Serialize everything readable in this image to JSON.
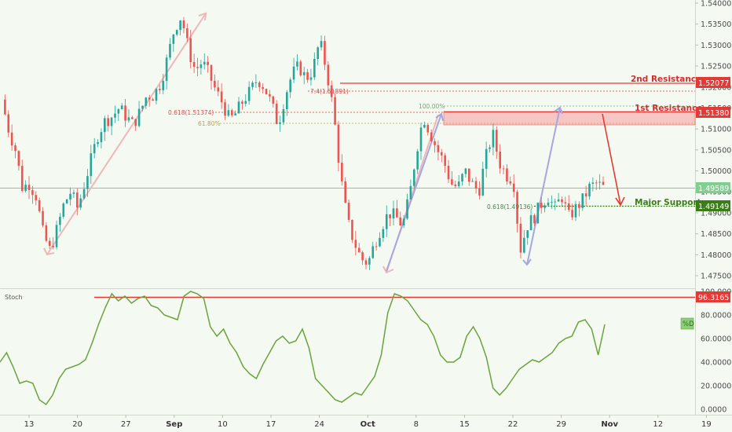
{
  "colors": {
    "background": "#f4faf2",
    "up": "#26a69a",
    "down": "#ef5350",
    "resistance": "#e53935",
    "support": "#3c7d1a",
    "stoch": "#6aa33a",
    "arrow_pink": "#f0b6b8",
    "arrow_blue": "#a7a6e0",
    "current_price": "#7fcf8e",
    "fib_gold": "#c9b36a"
  },
  "price_axis": {
    "ticks": [
      "1.54000",
      "1.53500",
      "1.53000",
      "1.52500",
      "1.52000",
      "1.51500",
      "1.51000",
      "1.50500",
      "1.50000",
      "1.49500",
      "1.49000",
      "1.48500",
      "1.48000",
      "1.47500"
    ]
  },
  "stoch_axis": {
    "ticks": [
      "100.0000",
      "80.0000",
      "60.0000",
      "40.0000",
      "20.0000",
      "0.0000"
    ]
  },
  "x_axis": {
    "ticks": [
      {
        "label": "13",
        "bold": false
      },
      {
        "label": "20",
        "bold": false
      },
      {
        "label": "27",
        "bold": false
      },
      {
        "label": "Sep",
        "bold": true
      },
      {
        "label": "10",
        "bold": false
      },
      {
        "label": "17",
        "bold": false
      },
      {
        "label": "24",
        "bold": false
      },
      {
        "label": "Oct",
        "bold": true
      },
      {
        "label": "8",
        "bold": false
      },
      {
        "label": "15",
        "bold": false
      },
      {
        "label": "22",
        "bold": false
      },
      {
        "label": "29",
        "bold": false
      },
      {
        "label": "Nov",
        "bold": true
      },
      {
        "label": "12",
        "bold": false
      },
      {
        "label": "19",
        "bold": false
      }
    ]
  },
  "levels": {
    "second_resistance": {
      "label": "2nd Resistance",
      "value": "1.52077"
    },
    "first_resistance": {
      "label": "1st Resistance",
      "value": "1.51380"
    },
    "current_price": {
      "value": "1.49589"
    },
    "major_support": {
      "label": "Major Support",
      "value": "1.49149"
    },
    "stoch_level": {
      "value": "96.3165"
    }
  },
  "fib_labels": {
    "ext_top": "7.4(1.51891)",
    "fib_0618_top": "0.618(1.51374)",
    "fib_6180": "61.80%",
    "fib_100": "100.00%",
    "fib_0618_bottom": "0.618(1.49136)"
  },
  "stoch_panel": {
    "title": "Stoch",
    "d_badge": "%D"
  },
  "chart_data": [
    {
      "type": "candlestick",
      "instrument_note": "",
      "x": [
        "Aug 13",
        "Aug 20",
        "Aug 27",
        "Sep 3",
        "Sep 10",
        "Sep 17",
        "Sep 24",
        "Oct 1",
        "Oct 8",
        "Oct 15",
        "Oct 22",
        "Oct 29",
        "Nov 5",
        "Nov 12",
        "Nov 19"
      ],
      "ylim": [
        1.473,
        1.541
      ],
      "approx_path": [
        [
          0,
          1.517
        ],
        [
          1,
          1.51
        ],
        [
          2,
          1.505
        ],
        [
          3,
          1.496
        ],
        [
          4,
          1.497
        ],
        [
          5,
          1.494
        ],
        [
          6,
          1.485
        ],
        [
          7,
          1.481
        ],
        [
          8,
          1.486
        ],
        [
          9,
          1.492
        ],
        [
          10,
          1.495
        ],
        [
          11,
          1.491
        ],
        [
          12,
          1.497
        ],
        [
          13,
          1.503
        ],
        [
          14,
          1.509
        ],
        [
          15,
          1.512
        ],
        [
          16,
          1.513
        ],
        [
          17,
          1.515
        ],
        [
          18,
          1.513
        ],
        [
          19,
          1.511
        ],
        [
          20,
          1.514
        ],
        [
          21,
          1.518
        ],
        [
          22,
          1.518
        ],
        [
          23,
          1.521
        ],
        [
          24,
          1.527
        ],
        [
          25,
          1.534
        ],
        [
          26,
          1.537
        ],
        [
          27,
          1.529
        ],
        [
          28,
          1.524
        ],
        [
          29,
          1.526
        ],
        [
          30,
          1.523
        ],
        [
          31,
          1.519
        ],
        [
          32,
          1.516
        ],
        [
          33,
          1.512
        ],
        [
          34,
          1.514
        ],
        [
          35,
          1.517
        ],
        [
          36,
          1.519
        ],
        [
          37,
          1.522
        ],
        [
          38,
          1.52
        ],
        [
          39,
          1.516
        ],
        [
          40,
          1.511
        ],
        [
          41,
          1.518
        ],
        [
          42,
          1.523
        ],
        [
          43,
          1.525
        ],
        [
          44,
          1.522
        ],
        [
          45,
          1.524
        ],
        [
          46,
          1.531
        ],
        [
          47,
          1.524
        ],
        [
          48,
          1.514
        ],
        [
          49,
          1.499
        ],
        [
          50,
          1.488
        ],
        [
          51,
          1.483
        ],
        [
          52,
          1.479
        ],
        [
          53,
          1.478
        ],
        [
          54,
          1.483
        ],
        [
          55,
          1.487
        ],
        [
          56,
          1.49
        ],
        [
          57,
          1.489
        ],
        [
          58,
          1.487
        ],
        [
          59,
          1.494
        ],
        [
          60,
          1.505
        ],
        [
          61,
          1.513
        ],
        [
          62,
          1.509
        ],
        [
          63,
          1.505
        ],
        [
          64,
          1.502
        ],
        [
          65,
          1.497
        ],
        [
          66,
          1.496
        ],
        [
          67,
          1.5
        ],
        [
          68,
          1.497
        ],
        [
          69,
          1.495
        ],
        [
          70,
          1.503
        ],
        [
          71,
          1.509
        ],
        [
          72,
          1.502
        ],
        [
          73,
          1.499
        ],
        [
          74,
          1.498
        ],
        [
          75,
          1.481
        ],
        [
          76,
          1.487
        ],
        [
          77,
          1.489
        ],
        [
          78,
          1.492
        ],
        [
          79,
          1.494
        ],
        [
          80,
          1.491
        ],
        [
          81,
          1.494
        ],
        [
          82,
          1.489
        ],
        [
          83,
          1.491
        ],
        [
          84,
          1.493
        ],
        [
          85,
          1.496
        ],
        [
          86,
          1.497
        ],
        [
          87,
          1.496
        ]
      ]
    },
    {
      "type": "line",
      "series": [
        {
          "name": "%D",
          "values": [
            40,
            48,
            36,
            22,
            24,
            22,
            8,
            4,
            12,
            26,
            34,
            36,
            38,
            42,
            56,
            72,
            86,
            98,
            92,
            96,
            90,
            94,
            96,
            88,
            86,
            80,
            78,
            76,
            96,
            100,
            98,
            94,
            70,
            62,
            68,
            56,
            48,
            36,
            30,
            26,
            38,
            48,
            58,
            62,
            56,
            58,
            68,
            52,
            26,
            20,
            14,
            8,
            6,
            10,
            14,
            12,
            20,
            28,
            46,
            82,
            98,
            96,
            92,
            84,
            76,
            72,
            62,
            46,
            40,
            40,
            44,
            62,
            70,
            60,
            44,
            18,
            12,
            18,
            26,
            34,
            38,
            42,
            40,
            44,
            48,
            56,
            60,
            62,
            74,
            76,
            68,
            46,
            72
          ]
        }
      ],
      "ylim": [
        0,
        100
      ],
      "ticks": [
        0,
        20,
        40,
        60,
        80,
        100
      ]
    }
  ]
}
